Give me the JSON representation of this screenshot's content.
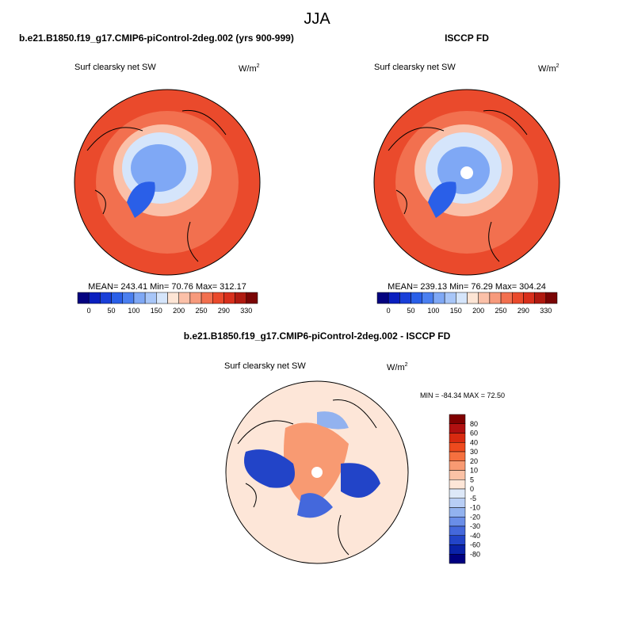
{
  "title": "JJA",
  "panels": [
    {
      "title": "b.e21.B1850.f19_g17.CMIP6-piControl-2deg.002 (yrs 900-999)",
      "variable": "Surf clearsky net SW",
      "units": "W/m",
      "units_sup": "2",
      "stats": "MEAN= 243.41  Min= 70.76  Max= 312.17",
      "colorbar": {
        "labels": [
          0,
          50,
          100,
          150,
          200,
          250,
          290,
          330
        ],
        "colors": [
          "#040380",
          "#0a1fbf",
          "#1a3fd8",
          "#2a5fe8",
          "#4a7ff0",
          "#7fa8f5",
          "#a8c6f8",
          "#d5e5fb",
          "#fde5d5",
          "#fbc0a8",
          "#f79a7c",
          "#f2704f",
          "#ea4a2c",
          "#d8301c",
          "#b01a10",
          "#7a0505"
        ]
      }
    },
    {
      "title": "ISCCP FD",
      "variable": "Surf clearsky net SW",
      "units": "W/m",
      "units_sup": "2",
      "stats": "MEAN= 239.13  Min= 76.29  Max= 304.24",
      "colorbar": {
        "labels": [
          0,
          50,
          100,
          150,
          200,
          250,
          290,
          330
        ],
        "colors": [
          "#040380",
          "#0a1fbf",
          "#1a3fd8",
          "#2a5fe8",
          "#4a7ff0",
          "#7fa8f5",
          "#a8c6f8",
          "#d5e5fb",
          "#fde5d5",
          "#fbc0a8",
          "#f79a7c",
          "#f2704f",
          "#ea4a2c",
          "#d8301c",
          "#b01a10",
          "#7a0505"
        ]
      }
    },
    {
      "title": "b.e21.B1850.f19_g17.CMIP6-piControl-2deg.002 - ISCCP FD",
      "variable": "Surf clearsky net SW",
      "units": "W/m",
      "units_sup": "2",
      "stats": "MIN = -84.34 MAX =  72.50",
      "colorbar": {
        "labels": [
          80,
          60,
          40,
          30,
          20,
          10,
          5,
          0,
          -5,
          -10,
          -20,
          -30,
          -40,
          -60,
          -80
        ],
        "colors": [
          "#800000",
          "#b01010",
          "#d82a10",
          "#ee4a1e",
          "#f5703f",
          "#f89a72",
          "#fbc2a6",
          "#fde6d8",
          "#dde8f8",
          "#b8cef5",
          "#92b2ef",
          "#6a8ee8",
          "#4468dc",
          "#2244c8",
          "#0a22a8",
          "#000080"
        ]
      }
    }
  ]
}
